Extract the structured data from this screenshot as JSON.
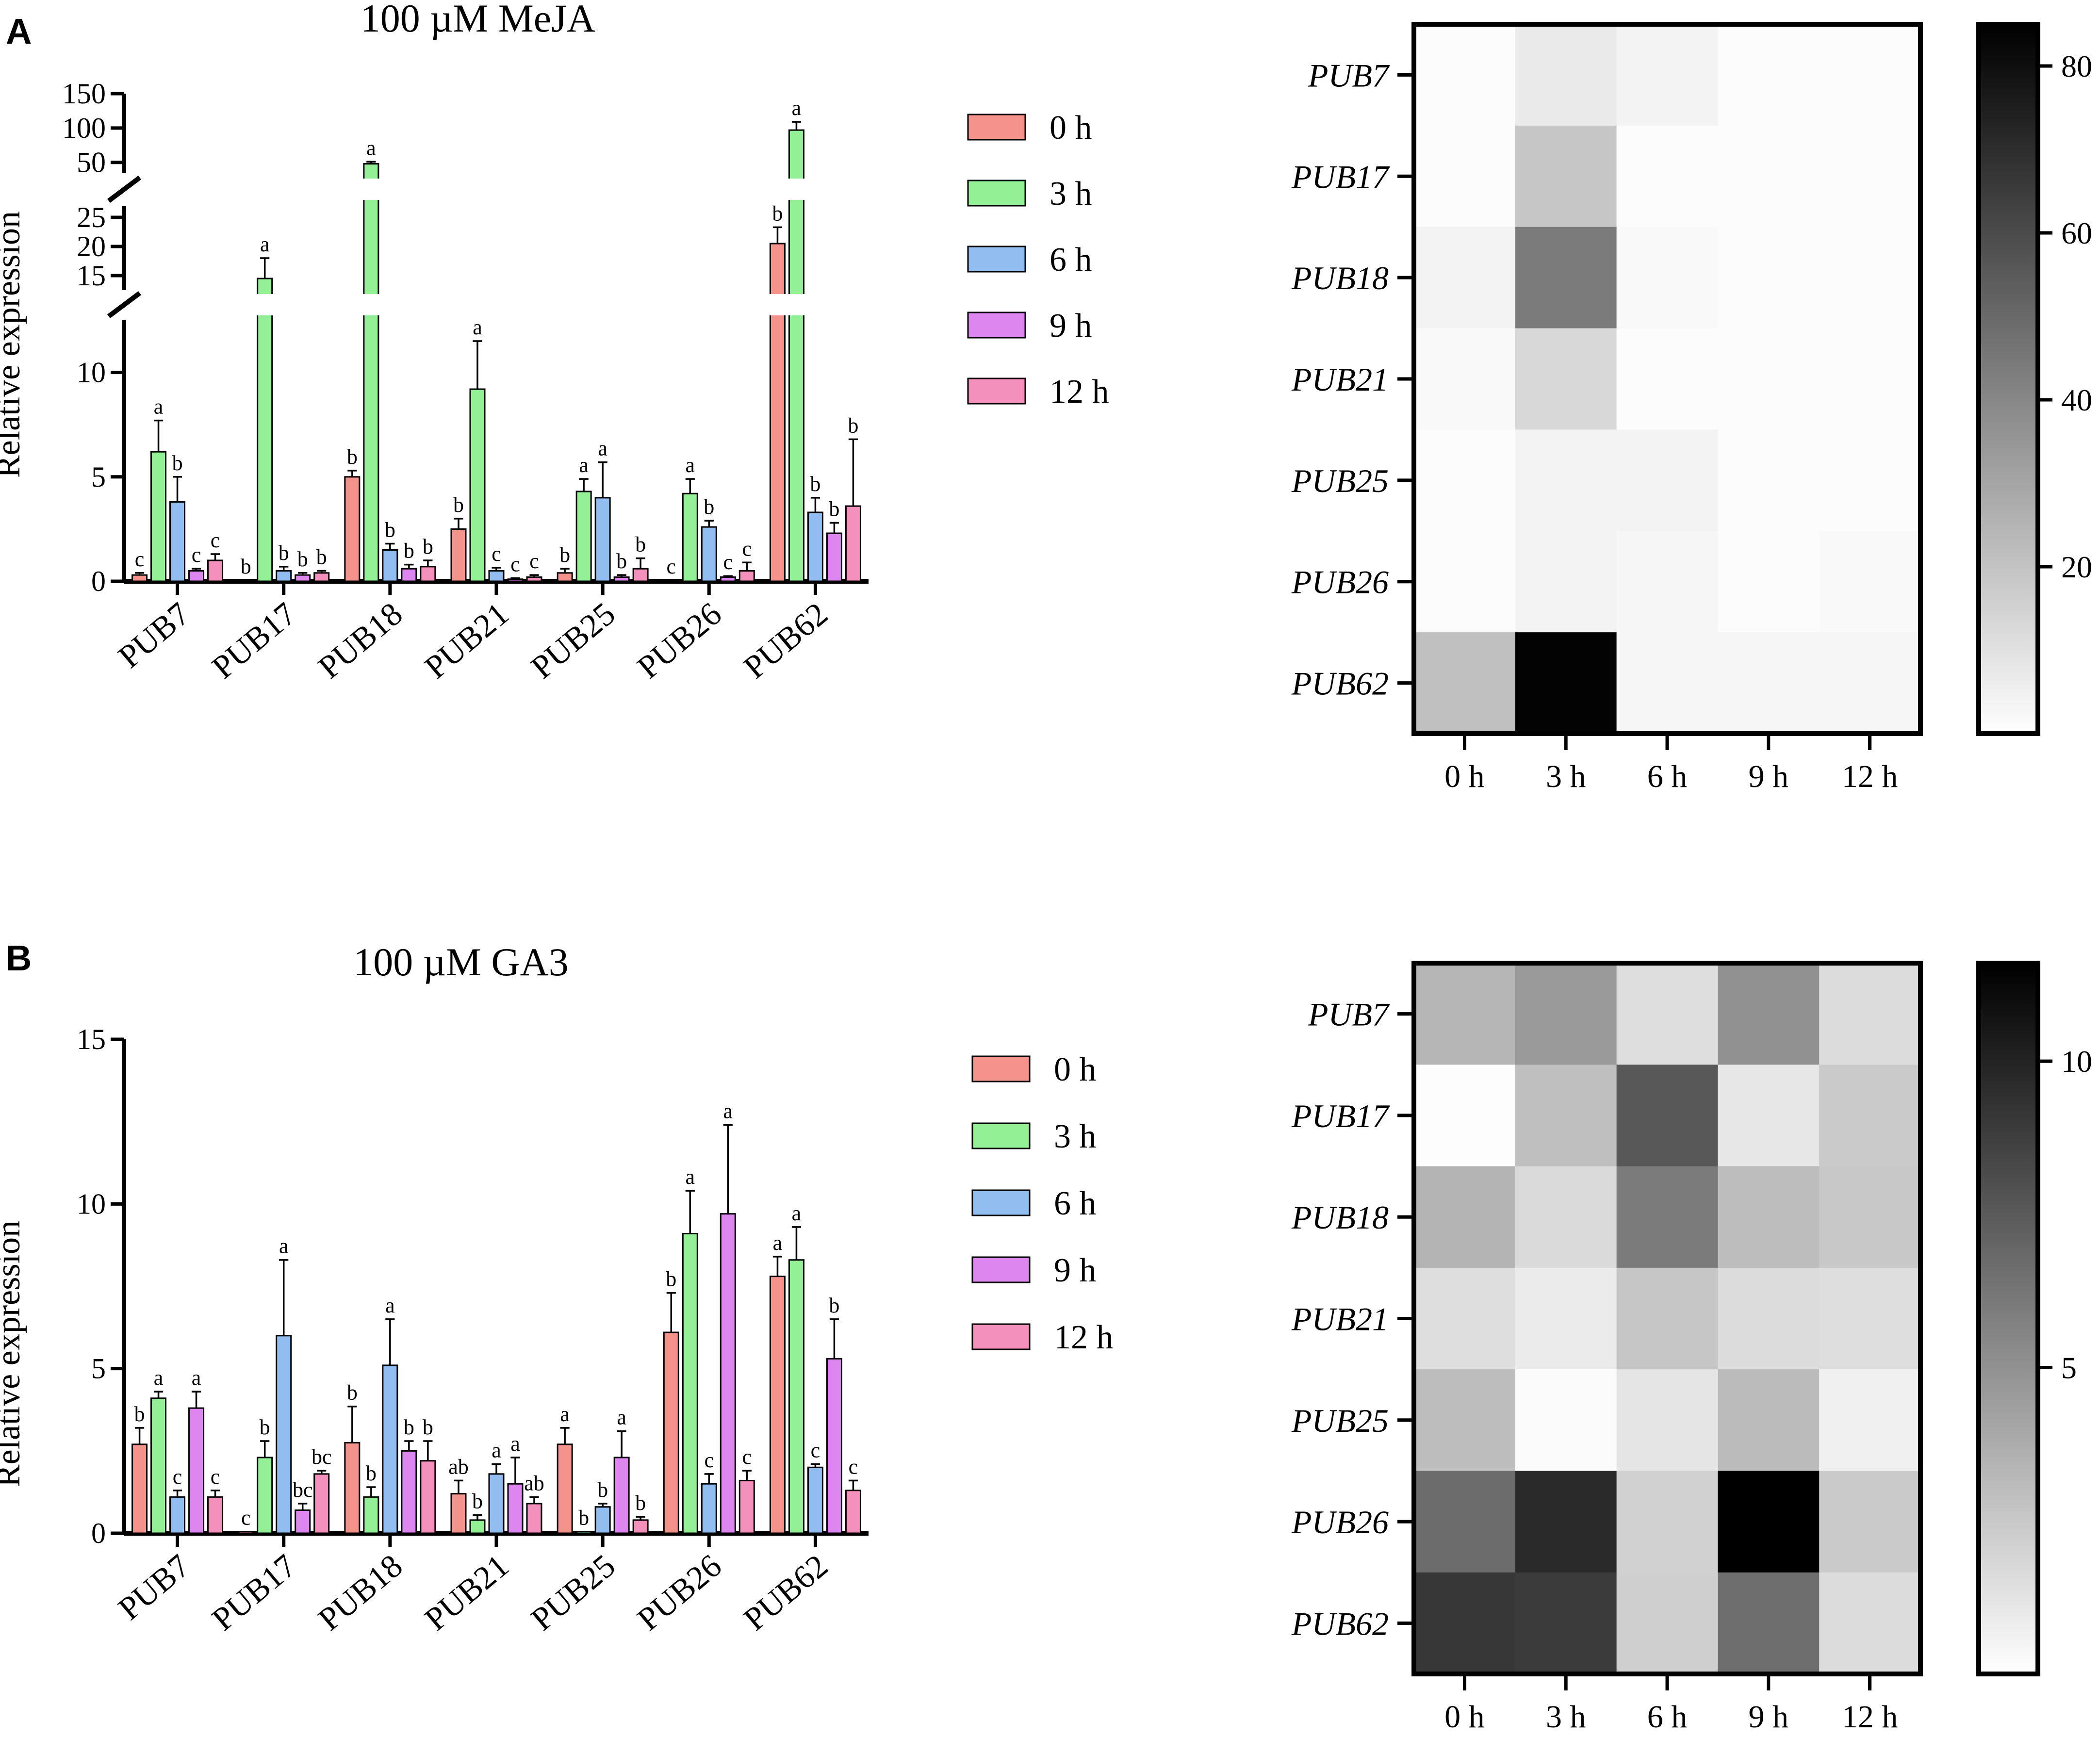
{
  "panel_labels": [
    "A",
    "B"
  ],
  "colors": {
    "series": [
      "#F4938C",
      "#94F094",
      "#92BDF0",
      "#DE86F0",
      "#F490BC"
    ],
    "axis": "#000000"
  },
  "chart_data": [
    {
      "id": "A_bar",
      "type": "bar",
      "title": "100 µM MeJA",
      "ylabel": "Relative expression",
      "categories": [
        "PUB7",
        "PUB17",
        "PUB18",
        "PUB21",
        "PUB25",
        "PUB26",
        "PUB62"
      ],
      "segments": [
        {
          "from": 0,
          "to": 12.5,
          "ticks": [
            0,
            5,
            10
          ]
        },
        {
          "from": 12.5,
          "to": 27,
          "ticks": [
            15,
            20,
            25
          ]
        },
        {
          "from": 35,
          "to": 150,
          "ticks": [
            50,
            100,
            150
          ]
        }
      ],
      "series": [
        {
          "name": "0 h",
          "values": [
            0.3,
            0.05,
            5.0,
            2.5,
            0.4,
            0.05,
            20.5
          ],
          "errors": [
            0.1,
            0.0,
            0.3,
            0.5,
            0.2,
            0.0,
            2.8
          ],
          "letters": [
            "c",
            "b",
            "b",
            "b",
            "b",
            "c",
            "b"
          ]
        },
        {
          "name": "3 h",
          "values": [
            6.2,
            14.5,
            48,
            9.2,
            4.3,
            4.2,
            97
          ],
          "errors": [
            1.5,
            3.5,
            3.0,
            2.3,
            0.6,
            0.7,
            12.0
          ],
          "letters": [
            "a",
            "a",
            "a",
            "a",
            "a",
            "a",
            "a"
          ]
        },
        {
          "name": "6 h",
          "values": [
            3.8,
            0.5,
            1.5,
            0.5,
            4.0,
            2.6,
            3.3
          ],
          "errors": [
            1.2,
            0.2,
            0.3,
            0.15,
            1.7,
            0.3,
            0.7
          ],
          "letters": [
            "b",
            "b",
            "b",
            "c",
            "a",
            "b",
            "b"
          ]
        },
        {
          "name": "9 h",
          "values": [
            0.5,
            0.3,
            0.6,
            0.1,
            0.2,
            0.2,
            2.3
          ],
          "errors": [
            0.1,
            0.1,
            0.2,
            0.05,
            0.1,
            0.05,
            0.5
          ],
          "letters": [
            "c",
            "b",
            "b",
            "c",
            "b",
            "c",
            "b"
          ]
        },
        {
          "name": "12 h",
          "values": [
            1.0,
            0.4,
            0.7,
            0.2,
            0.6,
            0.5,
            3.6
          ],
          "errors": [
            0.3,
            0.1,
            0.3,
            0.1,
            0.5,
            0.4,
            3.2
          ],
          "letters": [
            "c",
            "b",
            "b",
            "c",
            "b",
            "c",
            "b"
          ]
        }
      ]
    },
    {
      "id": "A_heat",
      "type": "heatmap",
      "rows": [
        "PUB7",
        "PUB17",
        "PUB18",
        "PUB21",
        "PUB25",
        "PUB26",
        "PUB62"
      ],
      "columns": [
        "0 h",
        "3 h",
        "6 h",
        "9 h",
        "12 h"
      ],
      "values": [
        [
          1,
          7,
          4,
          1,
          1
        ],
        [
          1,
          19,
          1,
          1,
          1
        ],
        [
          4,
          44,
          2,
          1,
          1
        ],
        [
          2,
          13,
          1,
          1,
          1
        ],
        [
          1,
          4,
          4,
          1,
          1
        ],
        [
          1,
          4,
          3,
          1,
          2
        ],
        [
          21,
          84,
          3,
          3,
          3
        ]
      ],
      "colorbar": {
        "min": 0,
        "max": 85,
        "ticks": [
          20,
          40,
          60,
          80
        ]
      }
    },
    {
      "id": "B_bar",
      "type": "bar",
      "title": "100 µM GA3",
      "ylabel": "Relative expression",
      "categories": [
        "PUB7",
        "PUB17",
        "PUB18",
        "PUB21",
        "PUB25",
        "PUB26",
        "PUB62"
      ],
      "ylim": [
        0,
        15
      ],
      "ticks": [
        0,
        5,
        10,
        15
      ],
      "series": [
        {
          "name": "0 h",
          "values": [
            2.7,
            0.05,
            2.75,
            1.2,
            2.7,
            6.1,
            7.8
          ],
          "errors": [
            0.5,
            0.0,
            1.1,
            0.4,
            0.5,
            1.2,
            0.6
          ],
          "letters": [
            "b",
            "c",
            "b",
            "ab",
            "a",
            "b",
            "a"
          ]
        },
        {
          "name": "3 h",
          "values": [
            4.1,
            2.3,
            1.1,
            0.4,
            0.05,
            9.1,
            8.3
          ],
          "errors": [
            0.2,
            0.5,
            0.3,
            0.15,
            0.0,
            1.3,
            1.0
          ],
          "letters": [
            "a",
            "b",
            "b",
            "b",
            "b",
            "a",
            "a"
          ]
        },
        {
          "name": "6 h",
          "values": [
            1.1,
            6.0,
            5.1,
            1.8,
            0.8,
            1.5,
            2.0
          ],
          "errors": [
            0.2,
            2.3,
            1.4,
            0.3,
            0.1,
            0.3,
            0.1
          ],
          "letters": [
            "c",
            "a",
            "a",
            "a",
            "b",
            "c",
            "c"
          ]
        },
        {
          "name": "9 h",
          "values": [
            3.8,
            0.7,
            2.5,
            1.5,
            2.3,
            9.7,
            5.3
          ],
          "errors": [
            0.5,
            0.2,
            0.3,
            0.8,
            0.8,
            2.7,
            1.2
          ],
          "letters": [
            "a",
            "bc",
            "b",
            "a",
            "a",
            "a",
            "b"
          ]
        },
        {
          "name": "12 h",
          "values": [
            1.1,
            1.8,
            2.2,
            0.9,
            0.4,
            1.6,
            1.3
          ],
          "errors": [
            0.2,
            0.1,
            0.6,
            0.2,
            0.1,
            0.3,
            0.3
          ],
          "letters": [
            "c",
            "bc",
            "b",
            "ab",
            "b",
            "c",
            "c"
          ]
        }
      ]
    },
    {
      "id": "B_heat",
      "type": "heatmap",
      "rows": [
        "PUB7",
        "PUB17",
        "PUB18",
        "PUB21",
        "PUB25",
        "PUB26",
        "PUB62"
      ],
      "columns": [
        "0 h",
        "3 h",
        "6 h",
        "9 h",
        "12 h"
      ],
      "values": [
        [
          3.3,
          4.6,
          1.5,
          5.0,
          1.6
        ],
        [
          0.1,
          2.9,
          7.6,
          1.1,
          2.4
        ],
        [
          3.4,
          1.7,
          6.0,
          3.0,
          2.5
        ],
        [
          1.5,
          0.9,
          2.6,
          1.6,
          1.5
        ],
        [
          3.0,
          0.2,
          1.2,
          3.1,
          0.7
        ],
        [
          6.7,
          9.7,
          2.1,
          11.6,
          2.4
        ],
        [
          9.1,
          8.9,
          2.2,
          6.6,
          1.6
        ]
      ],
      "colorbar": {
        "min": 0,
        "max": 11.6,
        "ticks": [
          5,
          10
        ]
      }
    }
  ]
}
